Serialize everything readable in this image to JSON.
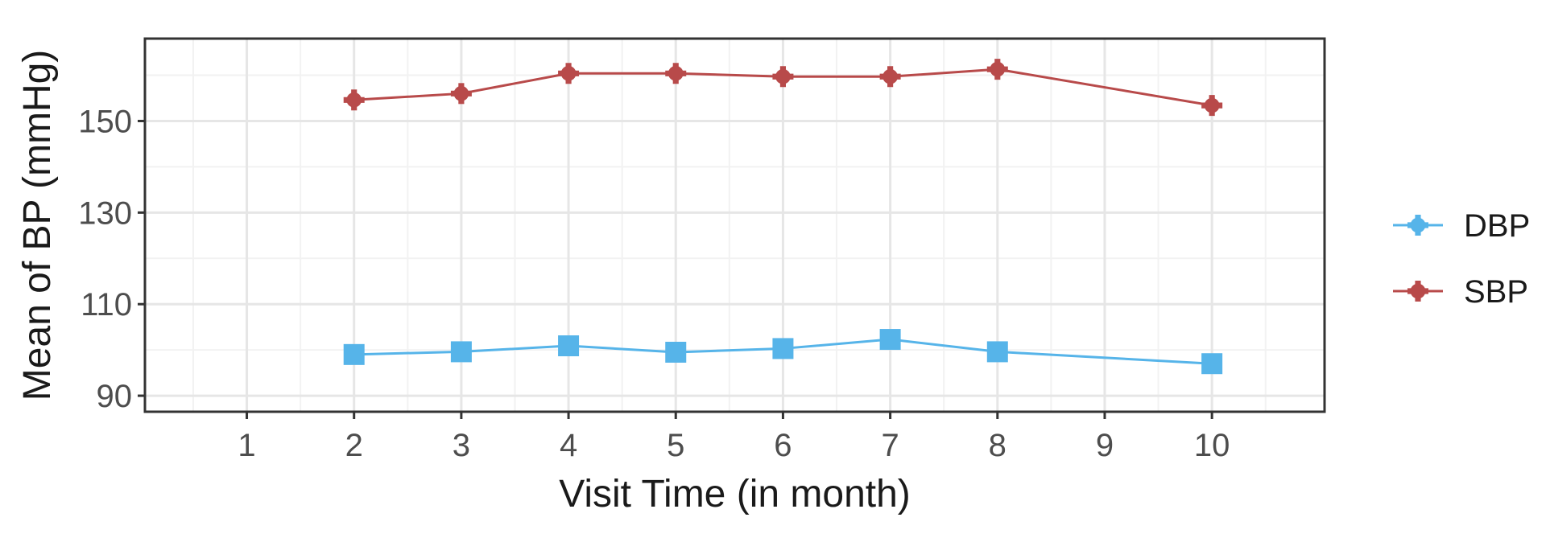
{
  "chart_data": {
    "type": "line",
    "title": "",
    "xlabel": "Visit Time (in month)",
    "ylabel": "Mean of BP  (mmHg)",
    "x_ticks": [
      1,
      2,
      3,
      4,
      5,
      6,
      7,
      8,
      9,
      10
    ],
    "y_ticks": [
      90,
      110,
      130,
      150
    ],
    "xlim": [
      0.05,
      11.05
    ],
    "ylim": [
      86.5,
      168
    ],
    "grid": true,
    "legend_position": "right",
    "series": [
      {
        "name": "DBP",
        "color": "#56B4E9",
        "marker": "square",
        "x": [
          2,
          3,
          4,
          5,
          6,
          7,
          8,
          10
        ],
        "y": [
          99,
          99.6,
          100.9,
          99.5,
          100.3,
          102.3,
          99.6,
          97
        ]
      },
      {
        "name": "SBP",
        "color": "#B84A4A",
        "marker": "plus-circle",
        "x": [
          2,
          3,
          4,
          5,
          6,
          7,
          8,
          10
        ],
        "y": [
          154.6,
          156,
          160.4,
          160.4,
          159.7,
          159.7,
          161.3,
          153.4
        ]
      }
    ]
  }
}
